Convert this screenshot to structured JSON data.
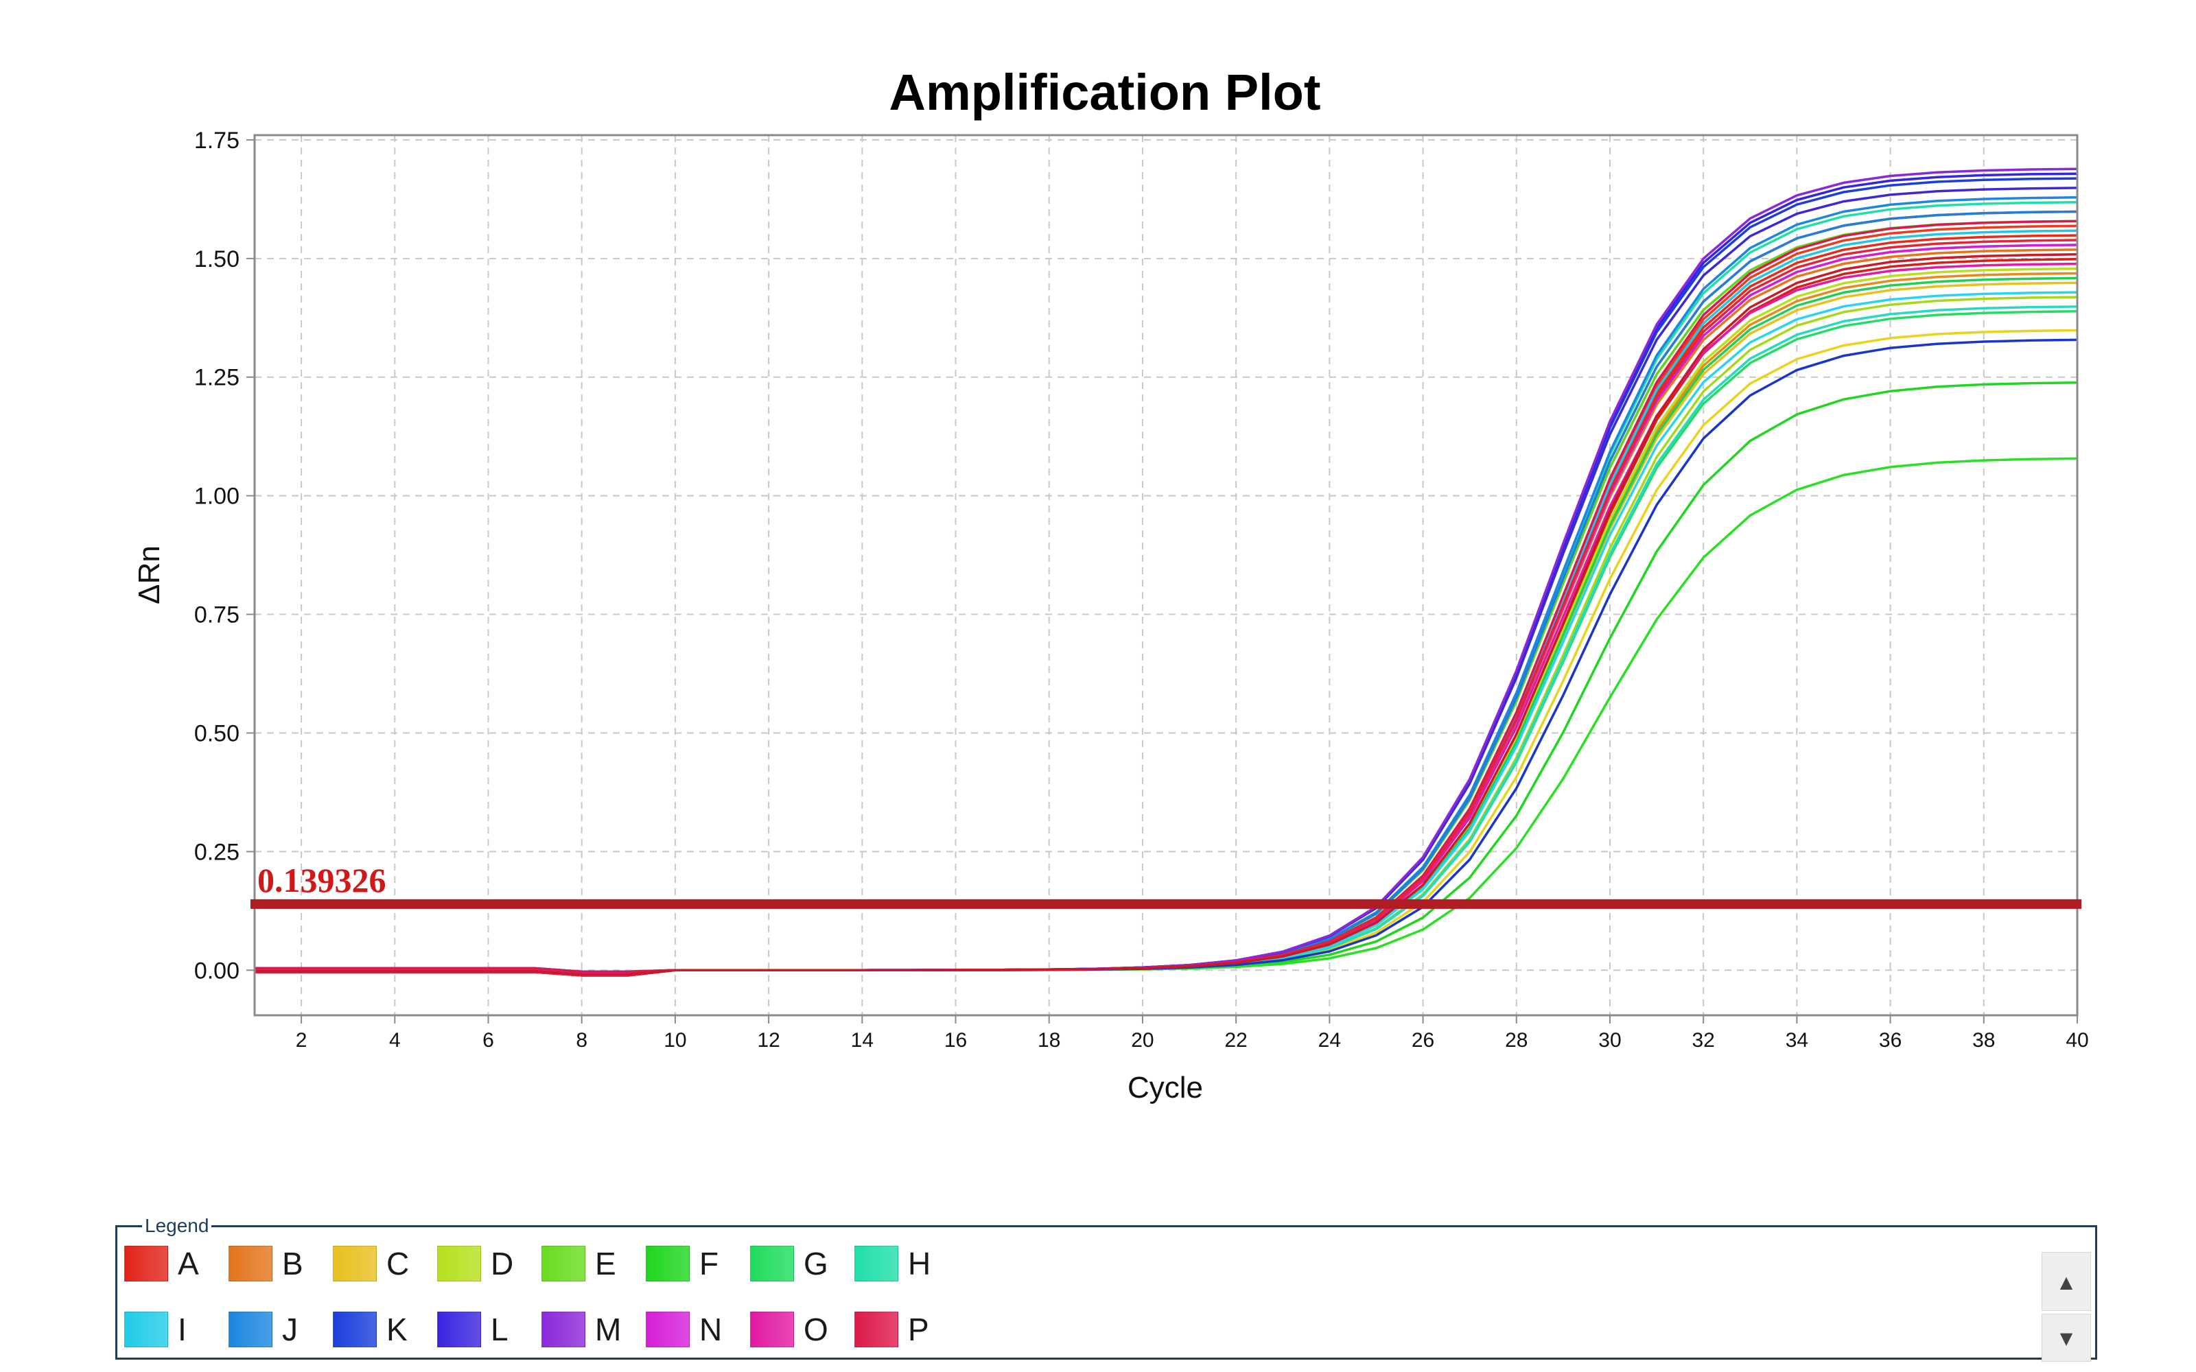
{
  "chart_data": {
    "type": "line",
    "title": "Amplification Plot",
    "xlabel": "Cycle",
    "ylabel": "ΔRn",
    "xlim": [
      1,
      40
    ],
    "ylim": [
      -0.095,
      1.76
    ],
    "x_ticks": [
      2,
      4,
      6,
      8,
      10,
      12,
      14,
      16,
      18,
      20,
      22,
      24,
      26,
      28,
      30,
      32,
      34,
      36,
      38,
      40
    ],
    "y_ticks": [
      "0.00",
      "0.25",
      "0.50",
      "0.75",
      "1.00",
      "1.25",
      "1.50",
      "1.75"
    ],
    "grid": true,
    "threshold": {
      "label": "0.139326",
      "value": 0.139326,
      "color": "#b01c24"
    },
    "x": [
      1,
      2,
      3,
      4,
      5,
      6,
      7,
      8,
      9,
      10,
      11,
      12,
      13,
      14,
      15,
      16,
      17,
      18,
      19,
      20,
      21,
      22,
      23,
      24,
      25,
      26,
      27,
      28,
      29,
      30,
      31,
      32,
      33,
      34,
      35,
      36,
      37,
      38,
      39,
      40
    ],
    "series": [
      {
        "color": "#e82a1a",
        "plateau": 1.55,
        "midpoint": 29.0
      },
      {
        "color": "#ee2218",
        "plateau": 1.6,
        "midpoint": 28.9
      },
      {
        "color": "#d91e16",
        "plateau": 1.5,
        "midpoint": 29.1
      },
      {
        "color": "#f03a1c",
        "plateau": 1.57,
        "midpoint": 29.0
      },
      {
        "color": "#e6761c",
        "plateau": 1.52,
        "midpoint": 29.0
      },
      {
        "color": "#e8891e",
        "plateau": 1.47,
        "midpoint": 29.1
      },
      {
        "color": "#e7c21e",
        "plateau": 1.45,
        "midpoint": 29.1
      },
      {
        "color": "#ebd21f",
        "plateau": 1.35,
        "midpoint": 29.3
      },
      {
        "color": "#b9e01c",
        "plateau": 1.48,
        "midpoint": 29.1
      },
      {
        "color": "#a8d81a",
        "plateau": 1.42,
        "midpoint": 29.2
      },
      {
        "color": "#5fd61c",
        "plateau": 1.58,
        "midpoint": 28.9
      },
      {
        "color": "#6ee41e",
        "plateau": 1.53,
        "midpoint": 29.0
      },
      {
        "color": "#21d61f",
        "plateau": 1.24,
        "midpoint": 29.6
      },
      {
        "color": "#2adf24",
        "plateau": 1.08,
        "midpoint": 29.8
      },
      {
        "color": "#22dd60",
        "plateau": 1.39,
        "midpoint": 29.2
      },
      {
        "color": "#21cf55",
        "plateau": 1.46,
        "midpoint": 29.1
      },
      {
        "color": "#1fdfa8",
        "plateau": 1.62,
        "midpoint": 28.9
      },
      {
        "color": "#28d9c0",
        "plateau": 1.4,
        "midpoint": 29.2
      },
      {
        "color": "#24c5e8",
        "plateau": 1.56,
        "midpoint": 29.0
      },
      {
        "color": "#2bd3f0",
        "plateau": 1.43,
        "midpoint": 29.1
      },
      {
        "color": "#1c86e0",
        "plateau": 1.63,
        "midpoint": 28.9
      },
      {
        "color": "#227fd8",
        "plateau": 1.6,
        "midpoint": 28.9
      },
      {
        "color": "#1b3fdb",
        "plateau": 1.67,
        "midpoint": 28.8
      },
      {
        "color": "#1a36c8",
        "plateau": 1.33,
        "midpoint": 29.4
      },
      {
        "color": "#3425e0",
        "plateau": 1.68,
        "midpoint": 28.8
      },
      {
        "color": "#3b2ad4",
        "plateau": 1.65,
        "midpoint": 28.8
      },
      {
        "color": "#8d28d9",
        "plateau": 1.69,
        "midpoint": 28.8
      },
      {
        "color": "#d21ed8",
        "plateau": 1.53,
        "midpoint": 29.0
      },
      {
        "color": "#e21aa6",
        "plateau": 1.49,
        "midpoint": 29.0
      },
      {
        "color": "#d81b4e",
        "plateau": 1.58,
        "midpoint": 29.0
      },
      {
        "color": "#e5233a",
        "plateau": 1.54,
        "midpoint": 29.0
      },
      {
        "color": "#c81a2a",
        "plateau": 1.51,
        "midpoint": 29.1
      }
    ]
  },
  "legend": {
    "title": "Legend",
    "items": [
      {
        "label": "A",
        "color": "#e2231a"
      },
      {
        "label": "B",
        "color": "#e4741d"
      },
      {
        "label": "C",
        "color": "#e8c01f"
      },
      {
        "label": "D",
        "color": "#b6e01d"
      },
      {
        "label": "E",
        "color": "#69dc1e"
      },
      {
        "label": "F",
        "color": "#1fd61f"
      },
      {
        "label": "G",
        "color": "#1fdc5c"
      },
      {
        "label": "H",
        "color": "#1fdfa9"
      },
      {
        "label": "I",
        "color": "#22cbe6"
      },
      {
        "label": "J",
        "color": "#1c86e0"
      },
      {
        "label": "K",
        "color": "#1b3fdb"
      },
      {
        "label": "L",
        "color": "#3a24df"
      },
      {
        "label": "M",
        "color": "#8c28d9"
      },
      {
        "label": "N",
        "color": "#d61ed8"
      },
      {
        "label": "O",
        "color": "#e21aa2"
      },
      {
        "label": "P",
        "color": "#de1a4a"
      }
    ],
    "scroll_up": "▲",
    "scroll_down": "▼"
  }
}
